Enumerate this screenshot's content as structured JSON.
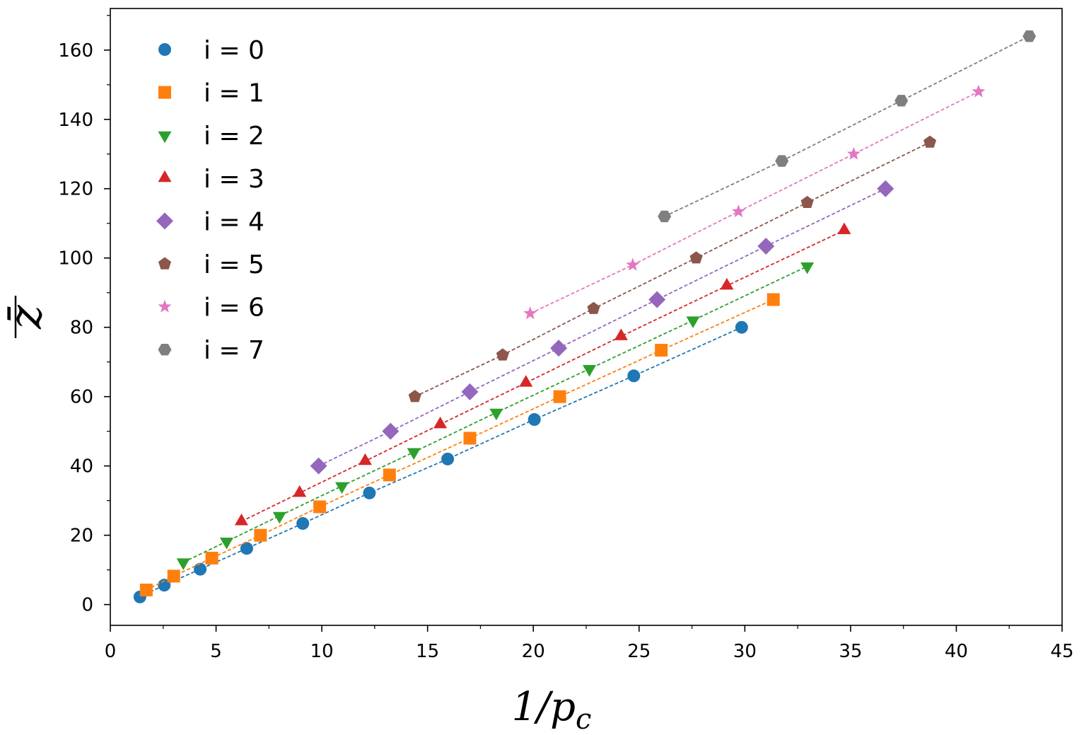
{
  "chart_data": {
    "type": "scatter",
    "title": "",
    "xlabel": "1/p",
    "xlabel_subscript": "c",
    "ylabel": "z̄",
    "xlim": [
      0,
      45
    ],
    "ylim": [
      -6,
      172
    ],
    "xticks": [
      0,
      5,
      10,
      15,
      20,
      25,
      30,
      35,
      40,
      45
    ],
    "yticks": [
      0,
      20,
      40,
      60,
      80,
      100,
      120,
      140,
      160
    ],
    "grid": false,
    "legend_position": "top-left",
    "series": [
      {
        "name": "i = 0",
        "color": "#1f77b4",
        "marker": "circle",
        "x": [
          1.4,
          2.55,
          4.25,
          6.45,
          9.1,
          12.25,
          15.95,
          20.05,
          24.75,
          29.85
        ],
        "y": [
          2.2,
          5.6,
          10.2,
          16.2,
          23.4,
          32.2,
          42.0,
          53.4,
          66.0,
          80.0
        ]
      },
      {
        "name": "i = 1",
        "color": "#ff7f0e",
        "marker": "square",
        "x": [
          1.7,
          3.0,
          4.8,
          7.1,
          9.9,
          13.2,
          17.0,
          21.25,
          26.05,
          31.35
        ],
        "y": [
          4.2,
          8.2,
          13.4,
          20.0,
          28.2,
          37.4,
          48.0,
          60.0,
          73.4,
          88.0
        ]
      },
      {
        "name": "i = 2",
        "color": "#2ca02c",
        "marker": "triangle-down",
        "x": [
          3.45,
          5.5,
          8.0,
          10.95,
          14.35,
          18.25,
          22.65,
          27.55,
          32.95
        ],
        "y": [
          12.2,
          18.2,
          25.6,
          34.2,
          44.0,
          55.4,
          68.0,
          82.0,
          97.6
        ]
      },
      {
        "name": "i = 3",
        "color": "#d62728",
        "marker": "triangle-up",
        "x": [
          6.2,
          8.95,
          12.05,
          15.6,
          19.65,
          24.15,
          29.15,
          34.7
        ],
        "y": [
          24.0,
          32.2,
          41.4,
          52.0,
          64.0,
          77.4,
          92.0,
          108.0
        ]
      },
      {
        "name": "i = 4",
        "color": "#9467bd",
        "marker": "diamond",
        "x": [
          9.85,
          13.25,
          17.0,
          21.2,
          25.85,
          31.0,
          36.65
        ],
        "y": [
          40.0,
          50.0,
          61.4,
          74.0,
          88.0,
          103.4,
          120.0
        ]
      },
      {
        "name": "i = 5",
        "color": "#8c564b",
        "marker": "pentagon",
        "x": [
          14.4,
          18.55,
          22.85,
          27.7,
          32.95,
          38.75
        ],
        "y": [
          60.0,
          72.0,
          85.4,
          100.0,
          116.0,
          133.4
        ]
      },
      {
        "name": "i = 6",
        "color": "#e377c2",
        "marker": "star",
        "x": [
          19.85,
          24.7,
          29.7,
          35.15,
          41.05
        ],
        "y": [
          84.0,
          98.0,
          113.4,
          130.0,
          148.0
        ]
      },
      {
        "name": "i = 7",
        "color": "#7f7f7f",
        "marker": "hexagon",
        "x": [
          26.2,
          31.75,
          37.4,
          43.45
        ],
        "y": [
          112.0,
          128.0,
          145.4,
          164.0
        ]
      }
    ]
  }
}
